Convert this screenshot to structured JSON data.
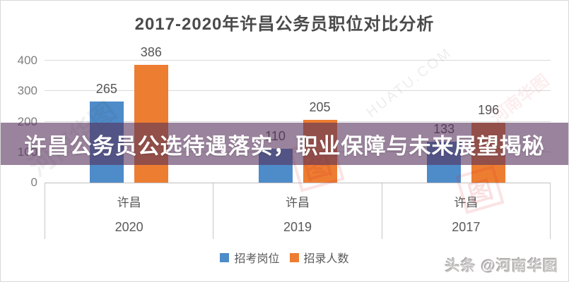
{
  "title": "2017-2020年许昌公务员职位对比分析",
  "banner": {
    "text": "许昌公务员公选待遇落实，职业保障与未来展望揭秘"
  },
  "watermarks": {
    "bottom_right": "头条 @河南华图",
    "diagonal_text": "河南华图",
    "diagonal_text_en": "HUATU.COM",
    "logo_glyph": "图"
  },
  "colors": {
    "series_blue": "#4E8BC9",
    "series_orange": "#ED7D31",
    "banner_overlay": "rgba(87,48,90,0.6)",
    "title_text": "#4a4a4a",
    "axis_text": "#7f7f7f",
    "label_text": "#595959",
    "gridline": "#d9d9d9",
    "axis_line": "#bfbfbf"
  },
  "chart_data": {
    "type": "bar",
    "title": "2017-2020年许昌公务员职位对比分析",
    "group_label": "许昌",
    "categories": [
      "2020",
      "2019",
      "2017"
    ],
    "series": [
      {
        "name": "招考岗位",
        "color": "#4E8BC9",
        "values": [
          265,
          110,
          133
        ]
      },
      {
        "name": "招录人数",
        "color": "#ED7D31",
        "values": [
          386,
          205,
          196
        ]
      }
    ],
    "xlabel": "",
    "ylabel": "",
    "ylim": [
      0,
      400
    ],
    "yticks": [
      0,
      100,
      200,
      300,
      400
    ],
    "grid": true,
    "legend_position": "bottom"
  }
}
